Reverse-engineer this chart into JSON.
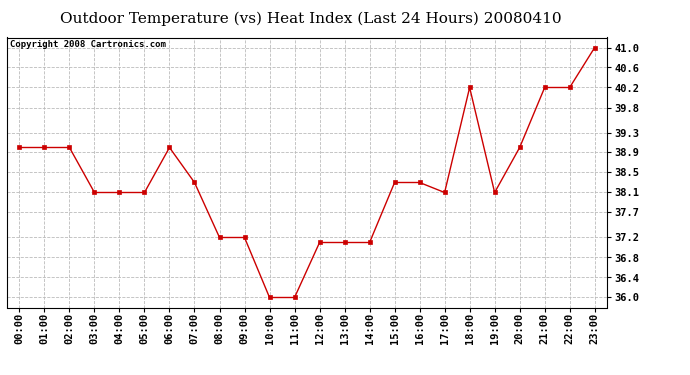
{
  "title": "Outdoor Temperature (vs) Heat Index (Last 24 Hours) 20080410",
  "copyright": "Copyright 2008 Cartronics.com",
  "x_labels": [
    "00:00",
    "01:00",
    "02:00",
    "03:00",
    "04:00",
    "05:00",
    "06:00",
    "07:00",
    "08:00",
    "09:00",
    "10:00",
    "11:00",
    "12:00",
    "13:00",
    "14:00",
    "15:00",
    "16:00",
    "17:00",
    "18:00",
    "19:00",
    "20:00",
    "21:00",
    "22:00",
    "23:00"
  ],
  "y_values": [
    39.0,
    39.0,
    39.0,
    38.1,
    38.1,
    38.1,
    39.0,
    38.3,
    37.2,
    37.2,
    36.0,
    36.0,
    37.1,
    37.1,
    37.1,
    38.3,
    38.3,
    38.1,
    40.2,
    38.1,
    39.0,
    40.2,
    40.2,
    41.0
  ],
  "line_color": "#cc0000",
  "marker_color": "#cc0000",
  "bg_color": "#ffffff",
  "plot_bg_color": "#ffffff",
  "grid_color": "#bbbbbb",
  "title_fontsize": 11,
  "copyright_fontsize": 6.5,
  "tick_fontsize": 7.5,
  "ylim": [
    35.8,
    41.2
  ],
  "yticks": [
    36.0,
    36.4,
    36.8,
    37.2,
    37.7,
    38.1,
    38.5,
    38.9,
    39.3,
    39.8,
    40.2,
    40.6,
    41.0
  ]
}
